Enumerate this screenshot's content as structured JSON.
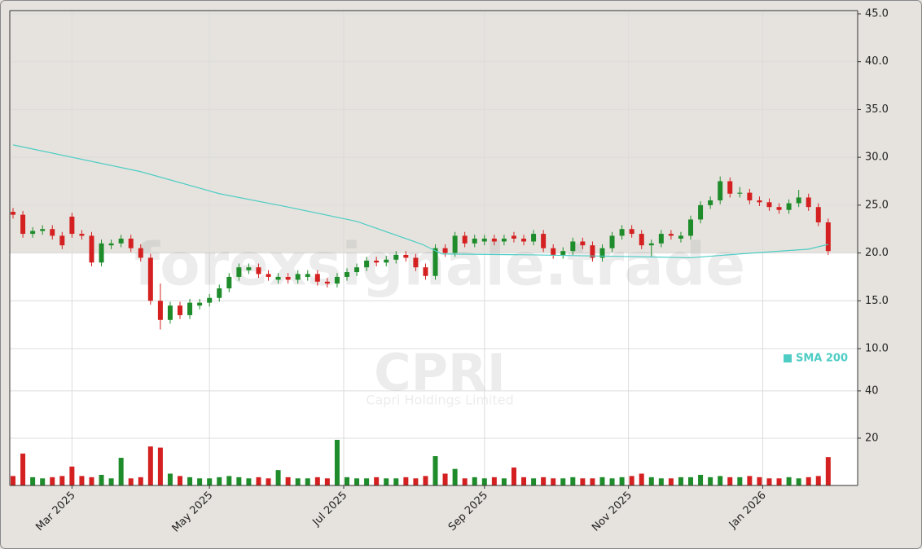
{
  "chart_data": {
    "type": "candlestick",
    "watermark": "forexsignale.trade",
    "symbol": "CPRI",
    "company": "Capri Holdings Limited",
    "up_color": "#1e8c2a",
    "down_color": "#d42020",
    "grid": true,
    "x": [
      0,
      3,
      6,
      9,
      12,
      15,
      18,
      21,
      24,
      27,
      30,
      33,
      36,
      39,
      42,
      45,
      48,
      51,
      54,
      57,
      60,
      63,
      66,
      69,
      72,
      75,
      78,
      81,
      84,
      87,
      90,
      93,
      96,
      99,
      102,
      105,
      108,
      111,
      114,
      117,
      120,
      123,
      126,
      129,
      132,
      135,
      138,
      141,
      144,
      147,
      150,
      153,
      156,
      159,
      162,
      165,
      168,
      171,
      174,
      177,
      180,
      183,
      186,
      189,
      192,
      195,
      198,
      201,
      204,
      207,
      210,
      213,
      216,
      219,
      222,
      225,
      228,
      231,
      234,
      237,
      240,
      243,
      246,
      249
    ],
    "open": [
      24.3,
      24.0,
      22.0,
      22.3,
      22.5,
      21.8,
      23.8,
      22.0,
      21.8,
      19.0,
      20.8,
      21.0,
      21.5,
      20.5,
      19.5,
      15.0,
      13.0,
      14.5,
      13.5,
      14.5,
      14.8,
      15.3,
      16.3,
      17.5,
      18.2,
      18.5,
      17.8,
      17.2,
      17.5,
      17.2,
      17.5,
      17.8,
      17.0,
      16.8,
      17.5,
      18.0,
      18.5,
      19.2,
      19.0,
      19.3,
      19.8,
      19.5,
      18.5,
      17.6,
      20.5,
      20.0,
      21.8,
      21.0,
      21.2,
      21.5,
      21.2,
      21.8,
      21.5,
      21.2,
      22.0,
      20.5,
      19.8,
      20.2,
      21.2,
      20.8,
      19.5,
      20.5,
      21.8,
      22.5,
      22.0,
      20.8,
      21.0,
      22.0,
      21.5,
      21.8,
      23.5,
      25.0,
      25.5,
      27.5,
      26.2,
      26.3,
      25.5,
      25.3,
      24.8,
      24.5,
      25.2,
      25.8,
      24.8,
      23.2
    ],
    "high": [
      24.7,
      24.4,
      22.7,
      22.9,
      22.9,
      22.2,
      24.2,
      22.4,
      22.2,
      21.4,
      21.4,
      21.9,
      21.9,
      20.9,
      19.9,
      16.8,
      14.9,
      14.9,
      15.2,
      15.2,
      15.7,
      16.7,
      17.9,
      18.9,
      18.9,
      18.9,
      18.2,
      17.9,
      17.9,
      18.2,
      18.2,
      18.2,
      17.4,
      17.9,
      18.4,
      18.9,
      19.6,
      19.6,
      19.7,
      20.2,
      20.2,
      19.9,
      18.9,
      20.9,
      20.9,
      22.2,
      22.2,
      21.9,
      21.9,
      21.9,
      21.9,
      22.2,
      21.9,
      22.4,
      22.4,
      20.9,
      20.6,
      21.6,
      21.6,
      21.2,
      20.9,
      22.2,
      22.9,
      22.9,
      22.4,
      21.4,
      22.4,
      22.4,
      22.2,
      23.9,
      25.4,
      25.9,
      28.0,
      27.9,
      26.9,
      26.7,
      25.9,
      25.7,
      25.2,
      25.6,
      26.6,
      26.2,
      25.2,
      23.6
    ],
    "low": [
      23.6,
      21.6,
      21.6,
      21.9,
      21.4,
      20.4,
      21.6,
      21.4,
      18.6,
      18.6,
      20.4,
      20.6,
      20.1,
      19.1,
      14.6,
      12.0,
      12.6,
      13.1,
      13.1,
      14.1,
      14.4,
      14.9,
      15.9,
      17.1,
      17.8,
      17.4,
      17.1,
      16.8,
      16.8,
      16.8,
      17.1,
      16.6,
      16.4,
      16.4,
      17.1,
      17.6,
      18.1,
      18.6,
      18.6,
      18.9,
      19.1,
      18.1,
      17.2,
      17.2,
      19.6,
      19.6,
      20.6,
      20.6,
      20.8,
      20.8,
      20.8,
      21.1,
      20.8,
      20.8,
      20.1,
      19.4,
      19.4,
      19.8,
      20.4,
      19.1,
      19.1,
      20.1,
      21.4,
      21.6,
      20.4,
      19.6,
      20.6,
      21.4,
      21.1,
      21.4,
      23.1,
      24.6,
      25.1,
      25.8,
      25.8,
      25.1,
      24.9,
      24.4,
      24.1,
      24.1,
      24.8,
      24.4,
      22.8,
      19.8
    ],
    "close": [
      24.0,
      22.0,
      22.3,
      22.5,
      21.8,
      20.8,
      22.0,
      21.8,
      19.0,
      21.0,
      21.0,
      21.5,
      20.5,
      19.5,
      15.0,
      13.0,
      14.5,
      13.5,
      14.8,
      14.8,
      15.3,
      16.3,
      17.5,
      18.5,
      18.5,
      17.8,
      17.5,
      17.5,
      17.2,
      17.8,
      17.8,
      17.0,
      16.8,
      17.5,
      18.0,
      18.5,
      19.2,
      19.0,
      19.3,
      19.8,
      19.5,
      18.5,
      17.6,
      20.5,
      20.0,
      21.8,
      21.0,
      21.5,
      21.5,
      21.2,
      21.5,
      21.5,
      21.2,
      22.0,
      20.5,
      19.8,
      20.2,
      21.2,
      20.8,
      19.5,
      20.5,
      21.8,
      22.5,
      22.0,
      20.8,
      21.0,
      22.0,
      21.8,
      21.8,
      23.5,
      25.0,
      25.5,
      27.5,
      26.2,
      26.3,
      25.5,
      25.3,
      24.8,
      24.5,
      25.2,
      25.8,
      24.8,
      23.2,
      20.2
    ],
    "xlim": [
      -1,
      258
    ],
    "xticks": [
      {
        "value": 18,
        "label": "Mar 2025"
      },
      {
        "value": 60,
        "label": "May 2025"
      },
      {
        "value": 101,
        "label": "Jul 2025"
      },
      {
        "value": 144,
        "label": "Sep 2025"
      },
      {
        "value": 188,
        "label": "Nov 2025"
      },
      {
        "value": 229,
        "label": "Jan 2026"
      }
    ],
    "ylim": [
      9.83,
      45.34
    ],
    "yticks": [
      {
        "value": 10,
        "label": "10.0"
      },
      {
        "value": 15,
        "label": "15.0"
      },
      {
        "value": 20,
        "label": "20.0"
      },
      {
        "value": 25,
        "label": "25.0"
      },
      {
        "value": 30,
        "label": "30.0"
      },
      {
        "value": 35,
        "label": "35.0"
      },
      {
        "value": 40,
        "label": "40.0"
      },
      {
        "value": 45,
        "label": "45.0"
      }
    ],
    "volume": {
      "values": [
        4,
        13.5,
        3.5,
        3,
        3.5,
        4,
        8,
        4,
        3.5,
        4.5,
        3,
        11.7,
        3,
        3.5,
        16.5,
        16,
        5,
        4,
        3.5,
        3,
        3,
        3.5,
        4,
        3.5,
        3,
        3.5,
        3,
        6.5,
        3.5,
        3,
        3,
        3.5,
        3,
        19.3,
        3.5,
        3,
        3,
        3.5,
        3,
        3,
        3.5,
        3,
        4,
        12.4,
        5,
        7,
        3,
        3.5,
        3,
        3.5,
        3,
        7.6,
        3.5,
        3,
        3.5,
        3,
        3,
        3.5,
        3,
        3,
        3.5,
        3,
        3.5,
        4,
        5,
        3.5,
        3,
        3,
        3.5,
        3.5,
        4.5,
        3.5,
        4,
        3.5,
        3.5,
        4,
        3.5,
        3,
        3,
        3.5,
        3,
        3.5,
        4,
        12
      ],
      "ylim": [
        0,
        50.3
      ],
      "yticks": [
        20,
        40
      ]
    },
    "series": [
      {
        "name": "SMA 200",
        "color": "#4ecdc4",
        "x": [
          0,
          39,
          63,
          84,
          105,
          125,
          131,
          159,
          192,
          207,
          222,
          243,
          249
        ],
        "values": [
          31.3,
          28.5,
          26.2,
          24.8,
          23.3,
          20.9,
          19.9,
          19.8,
          19.6,
          19.5,
          19.9,
          20.4,
          20.9
        ]
      }
    ]
  }
}
